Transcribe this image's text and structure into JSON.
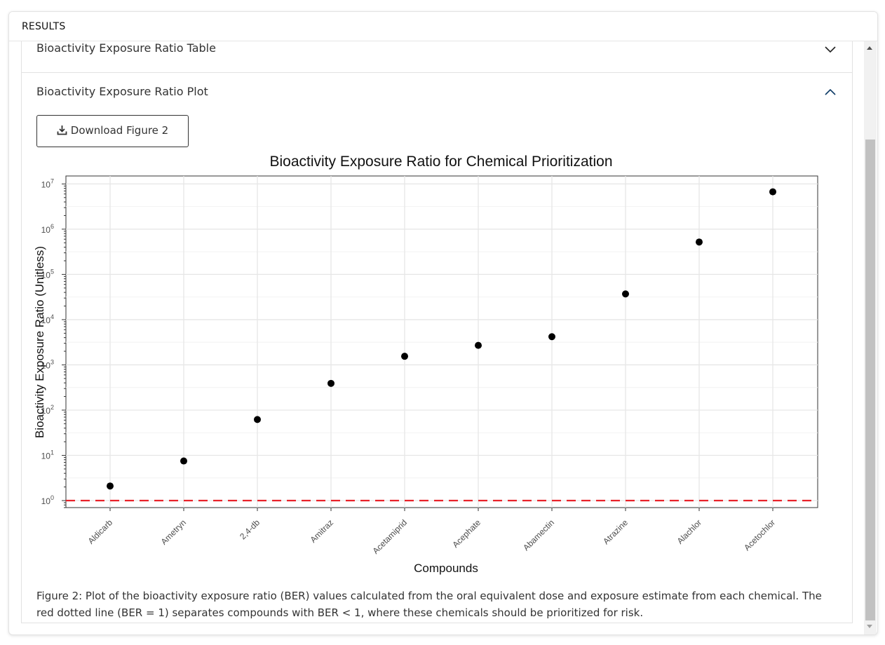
{
  "panel": {
    "header": "RESULTS"
  },
  "accordion": {
    "table_section": {
      "label": "Bioactivity Exposure Ratio Table"
    },
    "plot_section": {
      "label": "Bioactivity Exposure Ratio Plot"
    }
  },
  "download_button": {
    "label": "Download Figure 2",
    "icon": "download-icon"
  },
  "caption": "Figure 2: Plot of the bioactivity exposure ratio (BER) values calculated from the oral equivalent dose and exposure estimate from each chemical. The red dotted line (BER = 1) separates compounds with BER < 1, where these chemicals should be prioritized for risk.",
  "chart_data": {
    "type": "scatter",
    "title": "Bioactivity Exposure Ratio for Chemical Prioritization",
    "xlabel": "Compounds",
    "ylabel": "Bioactivity Exposure Ratio (Unitless)",
    "y_scale": "log10",
    "ylim": [
      0.7,
      15000000
    ],
    "yticks": [
      1,
      10,
      100,
      1000,
      10000,
      100000,
      1000000,
      10000000
    ],
    "ytick_labels": [
      {
        "base": "10",
        "exp": "0"
      },
      {
        "base": "10",
        "exp": "1"
      },
      {
        "base": "10",
        "exp": "2"
      },
      {
        "base": "10",
        "exp": "3"
      },
      {
        "base": "10",
        "exp": "4"
      },
      {
        "base": "10",
        "exp": "5"
      },
      {
        "base": "10",
        "exp": "6"
      },
      {
        "base": "10",
        "exp": "7"
      }
    ],
    "categories": [
      "Aldicarb",
      "Ametryn",
      "2,4-db",
      "Amitraz",
      "Acetamiprid",
      "Acephate",
      "Abamectin",
      "Atrazine",
      "Alachlor",
      "Acetochlor"
    ],
    "values": [
      2.1,
      7.5,
      62,
      390,
      1550,
      2700,
      4200,
      37000,
      520000,
      6700000
    ],
    "reference_line": {
      "y": 1,
      "color": "#e8222a",
      "style": "dashed"
    },
    "point_color": "#000000",
    "grid": true
  }
}
